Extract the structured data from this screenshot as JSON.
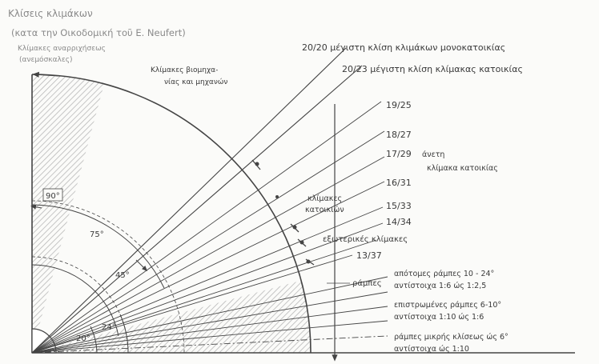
{
  "diagram": {
    "title": "Κλίσεις κλιμάκων",
    "subtitle": "(κατα την Οικοδομική τοῦ Ε. Neufert)",
    "colors": {
      "ink": "#3a3a3a",
      "ink_light": "#8a8a8a",
      "hatch": "#b8b8b8",
      "paper": "#fbfbf9"
    },
    "labels": {
      "ladders": "Κλίμακες αναρριχήσεως",
      "ladders_sub": "(ανεμόσκαλες)",
      "machine_stairs_1": "Κλίμακες βιομηχα-",
      "machine_stairs_2": "νίας και μηχανών",
      "max_single_home": "20/20 μέγιστη κλίση κλιμάκων μονοκατοικίας",
      "max_residence": "20/23 μέγιστη κλίση κλίμακας κατοικίας",
      "r19_25": "19/25",
      "r18_27": "18/27",
      "r17_29": "17/29",
      "comfortable_1": "άνετη",
      "comfortable_2": "κλίμακα κατοικίας",
      "r16_31": "16/31",
      "res_stairs_1": "κλίμακες",
      "res_stairs_2": "κατοικιών",
      "r15_33": "15/33",
      "r14_34": "14/34",
      "exterior_stairs": "εξωτερικές κλίμακες",
      "r13_37": "13/37",
      "ramps": "ράμπες",
      "steep_ramps_1": "απότομες ράμπες 10 - 24°",
      "steep_ramps_2": "αντίστοιχα 1:6 ώς 1:2,5",
      "flat_ramps_1": "επιστρωμένες ράμπες 6-10°",
      "flat_ramps_2": "αντίστοιχα 1:10 ώς 1:6",
      "low_ramps_1": "ράμπες μικρής κλίσεως ώς 6°",
      "low_ramps_2": "αντίστοιχα ώς 1:10"
    },
    "angles": {
      "a90": "90°",
      "a75": "75°",
      "a45": "45°",
      "a24": "24°",
      "a20": "20°"
    }
  }
}
